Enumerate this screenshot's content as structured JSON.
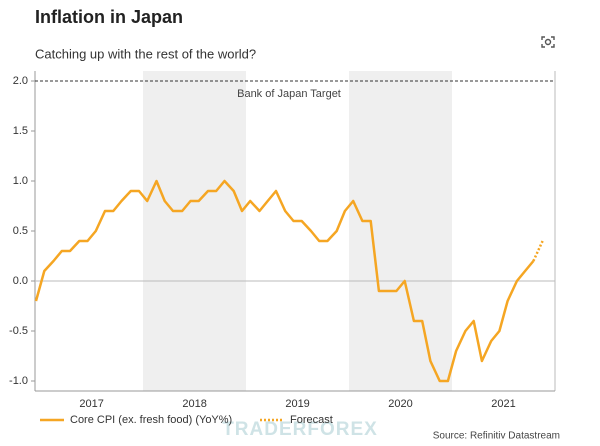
{
  "chart_data": {
    "type": "line",
    "title": "Inflation in Japan",
    "subtitle": "Catching up with the rest of the world?",
    "x": [
      2016.96,
      2017.04,
      2017.13,
      2017.21,
      2017.29,
      2017.38,
      2017.46,
      2017.54,
      2017.63,
      2017.71,
      2017.79,
      2017.88,
      2017.96,
      2018.04,
      2018.13,
      2018.21,
      2018.29,
      2018.38,
      2018.46,
      2018.54,
      2018.63,
      2018.71,
      2018.79,
      2018.88,
      2018.96,
      2019.04,
      2019.13,
      2019.21,
      2019.29,
      2019.38,
      2019.46,
      2019.54,
      2019.63,
      2019.71,
      2019.79,
      2019.88,
      2019.96,
      2020.04,
      2020.13,
      2020.21,
      2020.29,
      2020.38,
      2020.46,
      2020.54,
      2020.63,
      2020.71,
      2020.79,
      2020.88,
      2020.96,
      2021.04,
      2021.13,
      2021.21,
      2021.29,
      2021.38,
      2021.46,
      2021.54,
      2021.63,
      2021.71,
      2021.79
    ],
    "series": [
      {
        "name": "Core CPI (ex. fresh food) (YoY%)",
        "color": "#f5a623",
        "style": "solid",
        "values": [
          -0.2,
          0.1,
          0.2,
          0.3,
          0.3,
          0.4,
          0.4,
          0.5,
          0.7,
          0.7,
          0.8,
          0.9,
          0.9,
          0.8,
          1.0,
          0.8,
          0.7,
          0.7,
          0.8,
          0.8,
          0.9,
          0.9,
          1.0,
          0.9,
          0.7,
          0.8,
          0.7,
          0.8,
          0.9,
          0.7,
          0.6,
          0.6,
          0.5,
          0.4,
          0.4,
          0.5,
          0.7,
          0.8,
          0.6,
          0.6,
          -0.1,
          -0.1,
          -0.1,
          0.0,
          -0.4,
          -0.4,
          -0.8,
          -1.0,
          -1.0,
          -0.7,
          -0.5,
          -0.4,
          -0.8,
          -0.6,
          -0.5,
          -0.2,
          0.0,
          0.1,
          0.2
        ]
      },
      {
        "name": "Forecast",
        "color": "#f5a623",
        "style": "dotted",
        "x": [
          2021.79,
          2021.88
        ],
        "values": [
          0.2,
          0.4
        ]
      }
    ],
    "xlim": [
      2016.95,
      2022.0
    ],
    "xticks": [
      {
        "value": 2017.5,
        "label": "2017"
      },
      {
        "value": 2018.5,
        "label": "2018"
      },
      {
        "value": 2019.5,
        "label": "2019"
      },
      {
        "value": 2020.5,
        "label": "2020"
      },
      {
        "value": 2021.5,
        "label": "2021"
      }
    ],
    "ylim": [
      -1.1,
      2.1
    ],
    "yticks": [
      {
        "value": 2.0,
        "label": "2.0"
      },
      1.5,
      {
        "value": 1.0,
        "label": "1.0"
      },
      0.5,
      {
        "value": 0.0,
        "label": "0.0"
      },
      -0.5,
      {
        "value": -1.0,
        "label": "-1.0"
      }
    ],
    "target": {
      "value": 2.0,
      "label": "Bank of Japan Target"
    },
    "source": "Source: Refinitiv Datastream",
    "watermark": "TRADERFOREX"
  }
}
